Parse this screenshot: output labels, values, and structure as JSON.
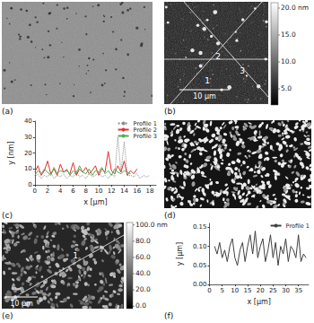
{
  "chart_data": [
    {
      "panel": "(c)",
      "type": "line",
      "x_label": "x [µm]",
      "y_label": "y [nm]",
      "xlim": [
        0,
        19
      ],
      "xticks": [
        0,
        2,
        4,
        6,
        8,
        10,
        12,
        14,
        16,
        18
      ],
      "ylim": [
        0,
        40
      ],
      "yticks": [
        0,
        10,
        20,
        30,
        40
      ],
      "grid": false,
      "legend": "upper right",
      "series": [
        {
          "name": "Profile 1",
          "color": "#8c8c8c",
          "line_style": "dotted",
          "x": [
            0,
            0.5,
            1,
            1.5,
            2,
            2.5,
            3,
            3.5,
            4,
            4.5,
            5,
            5.5,
            6,
            6.5,
            7,
            7.5,
            8,
            8.5,
            9,
            9.5,
            10,
            10.5,
            11,
            11.5,
            12,
            12.5,
            13,
            13.5,
            14,
            14.5,
            15,
            15.5,
            16,
            16.5,
            17,
            17.5,
            18
          ],
          "values": [
            5,
            7,
            4,
            6,
            5,
            8,
            4,
            6,
            5,
            7,
            4,
            6,
            5,
            9,
            5,
            6,
            4,
            7,
            5,
            6,
            8,
            5,
            6,
            4,
            7,
            5,
            30,
            8,
            27,
            6,
            6,
            5,
            7,
            4,
            6,
            5,
            6
          ]
        },
        {
          "name": "Profile 2",
          "color": "#e03030",
          "line_style": "solid",
          "x": [
            0,
            0.5,
            1,
            1.5,
            2,
            2.5,
            3,
            3.5,
            4,
            4.5,
            5,
            5.5,
            6,
            6.5,
            7,
            7.5,
            8,
            8.5,
            9,
            9.5,
            10,
            10.5,
            11,
            11.5,
            12,
            12.5,
            13,
            13.5,
            14,
            14.5,
            15,
            15.5,
            16
          ],
          "values": [
            8,
            12,
            6,
            9,
            15,
            7,
            10,
            6,
            13,
            8,
            9,
            7,
            14,
            6,
            10,
            8,
            11,
            7,
            9,
            12,
            6,
            10,
            8,
            21,
            9,
            7,
            12,
            8,
            15,
            6,
            9,
            7,
            10
          ]
        },
        {
          "name": "Profile 3",
          "color": "#4caf50",
          "line_style": "solid",
          "x": [
            0,
            0.5,
            1,
            1.5,
            2,
            2.5,
            3,
            3.5,
            4,
            4.5,
            5,
            5.5,
            6,
            6.5,
            7,
            7.5,
            8,
            8.5,
            9,
            9.5,
            10,
            10.5,
            11,
            11.5,
            12,
            12.5,
            13,
            13.5,
            14,
            14.5,
            15
          ],
          "values": [
            6,
            9,
            7,
            10,
            8,
            6,
            11,
            7,
            9,
            8,
            10,
            6,
            9,
            7,
            12,
            8,
            7,
            10,
            6,
            9,
            8,
            11,
            7,
            9,
            6,
            10,
            8,
            7,
            9,
            8,
            7
          ]
        }
      ]
    },
    {
      "panel": "(f)",
      "type": "line",
      "x_label": "x [µm]",
      "y_label": "y [µm]",
      "xlim": [
        0,
        39
      ],
      "xticks": [
        0,
        5,
        10,
        15,
        20,
        25,
        30,
        35
      ],
      "ylim": [
        0,
        0.16
      ],
      "yticks": [
        {
          "value": 0,
          "label": "0.00"
        },
        0.05,
        {
          "value": 0.1,
          "label": "0.10"
        },
        0.15
      ],
      "grid": false,
      "legend": "upper right",
      "series": [
        {
          "name": "Profile 1",
          "color": "#404040",
          "line_style": "solid",
          "x": [
            2,
            3,
            4,
            5,
            6,
            7,
            8,
            9,
            10,
            11,
            12,
            13,
            14,
            15,
            16,
            17,
            18,
            19,
            20,
            21,
            22,
            23,
            24,
            25,
            26,
            27,
            28,
            29,
            30,
            31,
            32,
            33,
            34,
            35,
            36,
            37,
            38
          ],
          "values": [
            0.1,
            0.08,
            0.11,
            0.07,
            0.09,
            0.06,
            0.1,
            0.12,
            0.07,
            0.05,
            0.09,
            0.11,
            0.06,
            0.1,
            0.13,
            0.08,
            0.14,
            0.07,
            0.1,
            0.12,
            0.06,
            0.09,
            0.13,
            0.07,
            0.11,
            0.05,
            0.1,
            0.08,
            0.12,
            0.06,
            0.1,
            0.09,
            0.07,
            0.13,
            0.06,
            0.08,
            0.07
          ]
        }
      ]
    }
  ],
  "images": [
    {
      "panel": "(a)"
    },
    {
      "panel": "(b)",
      "scale_bar": "10 µm",
      "profile_labels": [
        "1",
        "2",
        "3"
      ],
      "colorbar": {
        "range": [
          2,
          21
        ],
        "ticks": [
          {
            "value": 20,
            "label": "20.0 nm"
          },
          {
            "value": 15,
            "label": "15.0"
          },
          {
            "value": 10,
            "label": "10.0"
          },
          {
            "value": 5,
            "label": "5.0"
          }
        ]
      }
    },
    {
      "panel": "(d)"
    },
    {
      "panel": "(e)",
      "scale_bar": "10 µm",
      "profile_labels": [
        "1"
      ],
      "colorbar": {
        "range": [
          -3,
          103
        ],
        "ticks": [
          {
            "value": 100,
            "label": "100.0 nm"
          },
          {
            "value": 80,
            "label": "80.0"
          },
          {
            "value": 60,
            "label": "60.0"
          },
          {
            "value": 40,
            "label": "40.0"
          },
          {
            "value": 20,
            "label": "20.0"
          },
          {
            "value": 0,
            "label": "0.0"
          }
        ]
      }
    }
  ]
}
